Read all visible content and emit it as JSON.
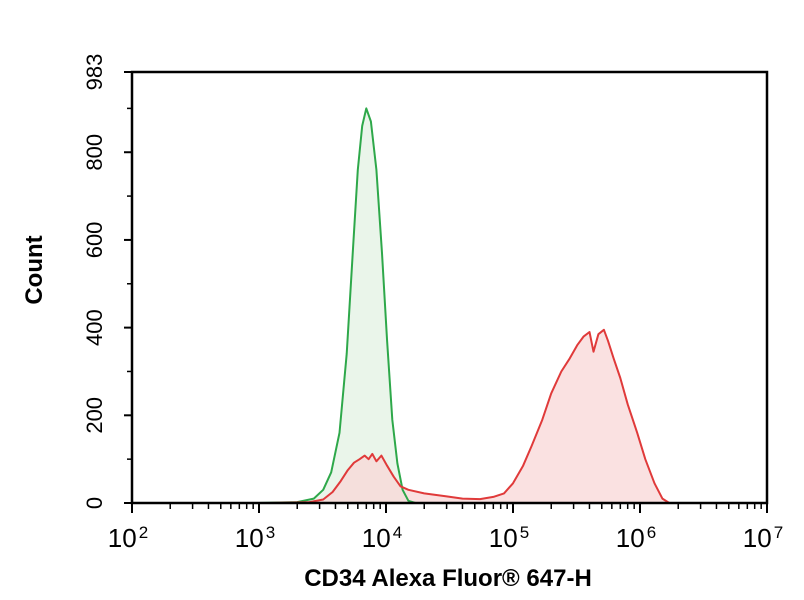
{
  "chart_data": {
    "type": "area",
    "xlabel": "CD34 Alexa Fluor® 647-H",
    "ylabel": "Count",
    "x_scale": "log",
    "xlim": [
      100,
      10000000
    ],
    "ylim": [
      0,
      983
    ],
    "x_ticks": [
      {
        "base": "10",
        "exp": "2",
        "value": 100
      },
      {
        "base": "10",
        "exp": "3",
        "value": 1000
      },
      {
        "base": "10",
        "exp": "4",
        "value": 10000
      },
      {
        "base": "10",
        "exp": "5",
        "value": 100000
      },
      {
        "base": "10",
        "exp": "6",
        "value": 1000000
      },
      {
        "base": "10",
        "exp": "7",
        "value": 10000000
      }
    ],
    "y_ticks": [
      "0",
      "200",
      "400",
      "600",
      "800",
      "983"
    ],
    "grid": false,
    "series": [
      {
        "color": "#2ea84a",
        "fill": "#e3f1e3",
        "points": [
          [
            1000,
            0
          ],
          [
            2000,
            2
          ],
          [
            2700,
            10
          ],
          [
            3200,
            30
          ],
          [
            3700,
            70
          ],
          [
            4300,
            160
          ],
          [
            4900,
            340
          ],
          [
            5500,
            580
          ],
          [
            6000,
            760
          ],
          [
            6500,
            860
          ],
          [
            7000,
            900
          ],
          [
            7600,
            870
          ],
          [
            8400,
            760
          ],
          [
            9300,
            570
          ],
          [
            10200,
            370
          ],
          [
            11200,
            190
          ],
          [
            12300,
            90
          ],
          [
            13500,
            30
          ],
          [
            15000,
            5
          ],
          [
            17000,
            0
          ]
        ]
      },
      {
        "color": "#e03a3a",
        "fill": "#f8d7d7",
        "points": [
          [
            1200,
            0
          ],
          [
            2500,
            2
          ],
          [
            3200,
            8
          ],
          [
            3800,
            25
          ],
          [
            4400,
            50
          ],
          [
            5000,
            75
          ],
          [
            5600,
            92
          ],
          [
            6200,
            100
          ],
          [
            6800,
            108
          ],
          [
            7300,
            100
          ],
          [
            7800,
            112
          ],
          [
            8400,
            95
          ],
          [
            9200,
            108
          ],
          [
            10200,
            85
          ],
          [
            11500,
            60
          ],
          [
            13000,
            38
          ],
          [
            15000,
            30
          ],
          [
            20000,
            22
          ],
          [
            30000,
            15
          ],
          [
            40000,
            10
          ],
          [
            55000,
            9
          ],
          [
            70000,
            14
          ],
          [
            85000,
            22
          ],
          [
            100000,
            45
          ],
          [
            120000,
            85
          ],
          [
            140000,
            130
          ],
          [
            170000,
            190
          ],
          [
            200000,
            250
          ],
          [
            240000,
            300
          ],
          [
            280000,
            330
          ],
          [
            320000,
            360
          ],
          [
            360000,
            380
          ],
          [
            400000,
            390
          ],
          [
            430000,
            345
          ],
          [
            470000,
            385
          ],
          [
            520000,
            395
          ],
          [
            560000,
            370
          ],
          [
            620000,
            330
          ],
          [
            700000,
            285
          ],
          [
            800000,
            225
          ],
          [
            950000,
            160
          ],
          [
            1100000,
            100
          ],
          [
            1300000,
            45
          ],
          [
            1500000,
            10
          ],
          [
            1700000,
            0
          ]
        ]
      }
    ]
  }
}
